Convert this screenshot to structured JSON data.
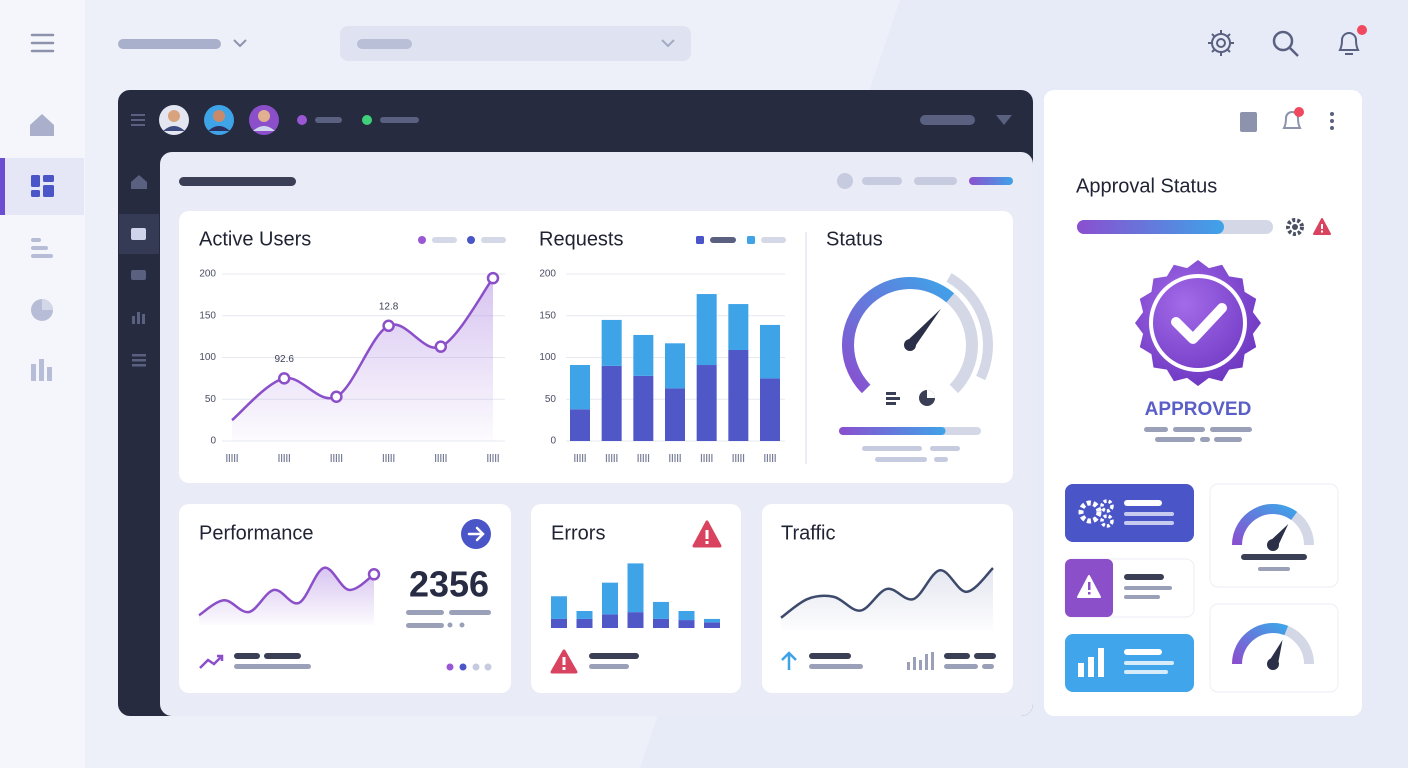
{
  "chart_data": [
    {
      "type": "area",
      "title": "Active Users",
      "categories": [
        null,
        null,
        null,
        null,
        null,
        null
      ],
      "values": [
        25,
        75,
        53,
        138,
        113,
        195
      ],
      "annotations": [
        "92.6",
        "12.8"
      ],
      "color": "#8b4fc9",
      "ylim": [
        0,
        200
      ],
      "yticks": [
        0,
        50,
        100,
        150,
        200
      ],
      "grid": true
    },
    {
      "type": "stacked-bar",
      "title": "Requests",
      "categories": [
        null,
        null,
        null,
        null,
        null,
        null,
        null
      ],
      "series": [
        {
          "color": "#5058c8",
          "values": [
            38,
            90,
            78,
            63,
            91,
            109,
            75
          ]
        },
        {
          "color": "#3fa3e8",
          "values": [
            53,
            55,
            49,
            54,
            85,
            55,
            64
          ]
        }
      ],
      "ylim": [
        0,
        200
      ],
      "yticks": [
        0,
        50,
        100,
        150,
        200
      ],
      "grid": true
    },
    {
      "type": "area",
      "title": "Performance",
      "values": [
        15,
        38,
        20,
        54,
        34,
        88,
        54,
        78
      ],
      "color": "#8b4fc9",
      "ylim": [
        0,
        100
      ],
      "kpi": 2356
    },
    {
      "type": "stacked-bar",
      "title": "Errors",
      "series": [
        {
          "color": "#5058c8",
          "values": [
            8,
            8,
            12,
            14,
            8,
            7,
            5
          ]
        },
        {
          "color": "#3fa3e8",
          "values": [
            20,
            7,
            28,
            43,
            15,
            8,
            3
          ]
        }
      ],
      "ylim": [
        0,
        60
      ]
    },
    {
      "type": "line",
      "title": "Traffic",
      "values": [
        17,
        43,
        46,
        27,
        57,
        43,
        83,
        53,
        86
      ],
      "color": "#3d4a6b",
      "ylim": [
        0,
        100
      ]
    }
  ],
  "status": {
    "title": "Status",
    "gauge": 65,
    "progress": 75,
    "lim": [
      0,
      100
    ]
  },
  "approval": {
    "title": "Approval Status",
    "progress": 75,
    "status": "APPROVED",
    "lim": [
      0,
      100
    ]
  },
  "widgets": {
    "gauges": [
      70,
      62
    ],
    "lim": [
      0,
      100
    ]
  }
}
